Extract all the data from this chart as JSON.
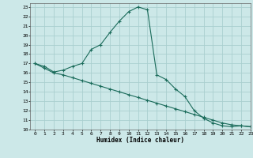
{
  "line1_x": [
    0,
    1,
    2,
    3,
    4,
    5,
    6,
    7,
    8,
    9,
    10,
    11,
    12,
    13,
    14,
    15,
    16,
    17,
    18,
    19,
    20,
    21,
    22,
    23
  ],
  "line1_y": [
    17,
    16.7,
    16.1,
    16.3,
    16.7,
    17.0,
    18.5,
    19.0,
    20.3,
    21.5,
    22.5,
    23.0,
    22.7,
    15.8,
    15.3,
    14.3,
    13.5,
    12.0,
    11.2,
    10.7,
    10.4,
    10.3,
    10.4,
    10.3
  ],
  "line2_x": [
    0,
    1,
    2,
    3,
    4,
    5,
    6,
    7,
    8,
    9,
    10,
    11,
    12,
    13,
    14,
    15,
    16,
    17,
    18,
    19,
    20,
    21,
    22,
    23
  ],
  "line2_y": [
    17,
    16.5,
    16.0,
    15.8,
    15.5,
    15.2,
    14.9,
    14.6,
    14.3,
    14.0,
    13.7,
    13.4,
    13.1,
    12.8,
    12.5,
    12.2,
    11.9,
    11.6,
    11.3,
    11.0,
    10.7,
    10.5,
    10.4,
    10.3
  ],
  "color": "#1a6b5a",
  "bg_color": "#cce8e8",
  "grid_color": "#aacfcf",
  "xlabel": "Humidex (Indice chaleur)",
  "xlim": [
    -0.5,
    23
  ],
  "ylim": [
    10,
    23.4
  ],
  "yticks": [
    10,
    11,
    12,
    13,
    14,
    15,
    16,
    17,
    18,
    19,
    20,
    21,
    22,
    23
  ],
  "xticks": [
    0,
    1,
    2,
    3,
    4,
    5,
    6,
    7,
    8,
    9,
    10,
    11,
    12,
    13,
    14,
    15,
    16,
    17,
    18,
    19,
    20,
    21,
    22,
    23
  ]
}
